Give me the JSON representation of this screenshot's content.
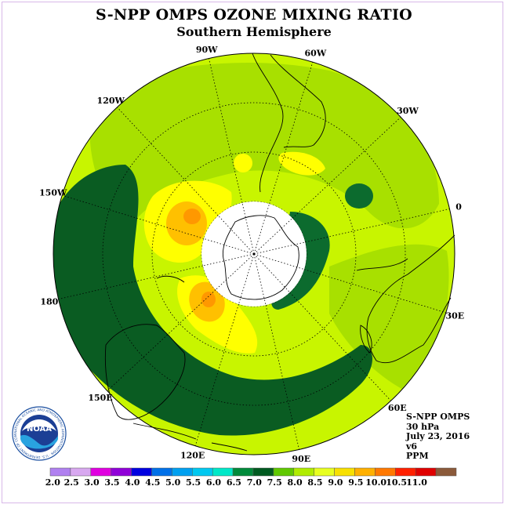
{
  "title": "S-NPP OMPS OZONE MIXING RATIO",
  "subtitle": "Southern Hemisphere",
  "longitude_labels": [
    {
      "text": "90W",
      "lon": -90
    },
    {
      "text": "60W",
      "lon": -60
    },
    {
      "text": "30W",
      "lon": -30
    },
    {
      "text": "0",
      "lon": 0
    },
    {
      "text": "30E",
      "lon": 30
    },
    {
      "text": "60E",
      "lon": 60
    },
    {
      "text": "90E",
      "lon": 90
    },
    {
      "text": "120E",
      "lon": 120
    },
    {
      "text": "150E",
      "lon": 150
    },
    {
      "text": "180",
      "lon": 180
    },
    {
      "text": "150W",
      "lon": -150
    },
    {
      "text": "120W",
      "lon": -120
    }
  ],
  "info": {
    "instrument": "S-NPP OMPS",
    "level": "30 hPa",
    "date": "July 23, 2016",
    "version": "v6",
    "units": "PPM"
  },
  "logo": {
    "text": "NOAA",
    "ring_text": "NATIONAL OCEANIC AND ATMOSPHERIC ADMINISTRATION · U.S. DEPARTMENT OF COMMERCE"
  },
  "colorbar": {
    "labels": [
      "2.0",
      "2.5",
      "3.0",
      "3.5",
      "4.0",
      "4.5",
      "5.0",
      "5.5",
      "6.0",
      "6.5",
      "7.0",
      "7.5",
      "8.0",
      "8.5",
      "9.0",
      "9.5",
      "10.0",
      "10.5",
      "11.0"
    ],
    "colors": [
      "#b080f0",
      "#d8a8f0",
      "#e000e0",
      "#9000d8",
      "#0000e0",
      "#0070e8",
      "#00a0f0",
      "#00c8f0",
      "#00e8c8",
      "#008a3a",
      "#005a20",
      "#60c000",
      "#b8f000",
      "#e8ff00",
      "#ffff00",
      "#ffc000",
      "#ff8000",
      "#ff2000",
      "#c00000"
    ],
    "bar_colors": [
      "#b080f0",
      "#d8a8f0",
      "#e000e0",
      "#9000d8",
      "#0000e0",
      "#0070e8",
      "#00a0f0",
      "#00c8f0",
      "#00e8c8",
      "#008a3a",
      "#005a20",
      "#60c800",
      "#b0ec00",
      "#e8ff20",
      "#f8e000",
      "#ffb000",
      "#ff7800",
      "#ff2000",
      "#e00000",
      "#8b5a3a"
    ]
  },
  "field_colors": {
    "c65": "#0c6b2e",
    "c70": "#0a5c22",
    "c75": "#3aa020",
    "c80": "#a8e000",
    "c85": "#c8f500",
    "c90": "#ffff00",
    "c95": "#ffc000",
    "c100": "#ff9800"
  }
}
